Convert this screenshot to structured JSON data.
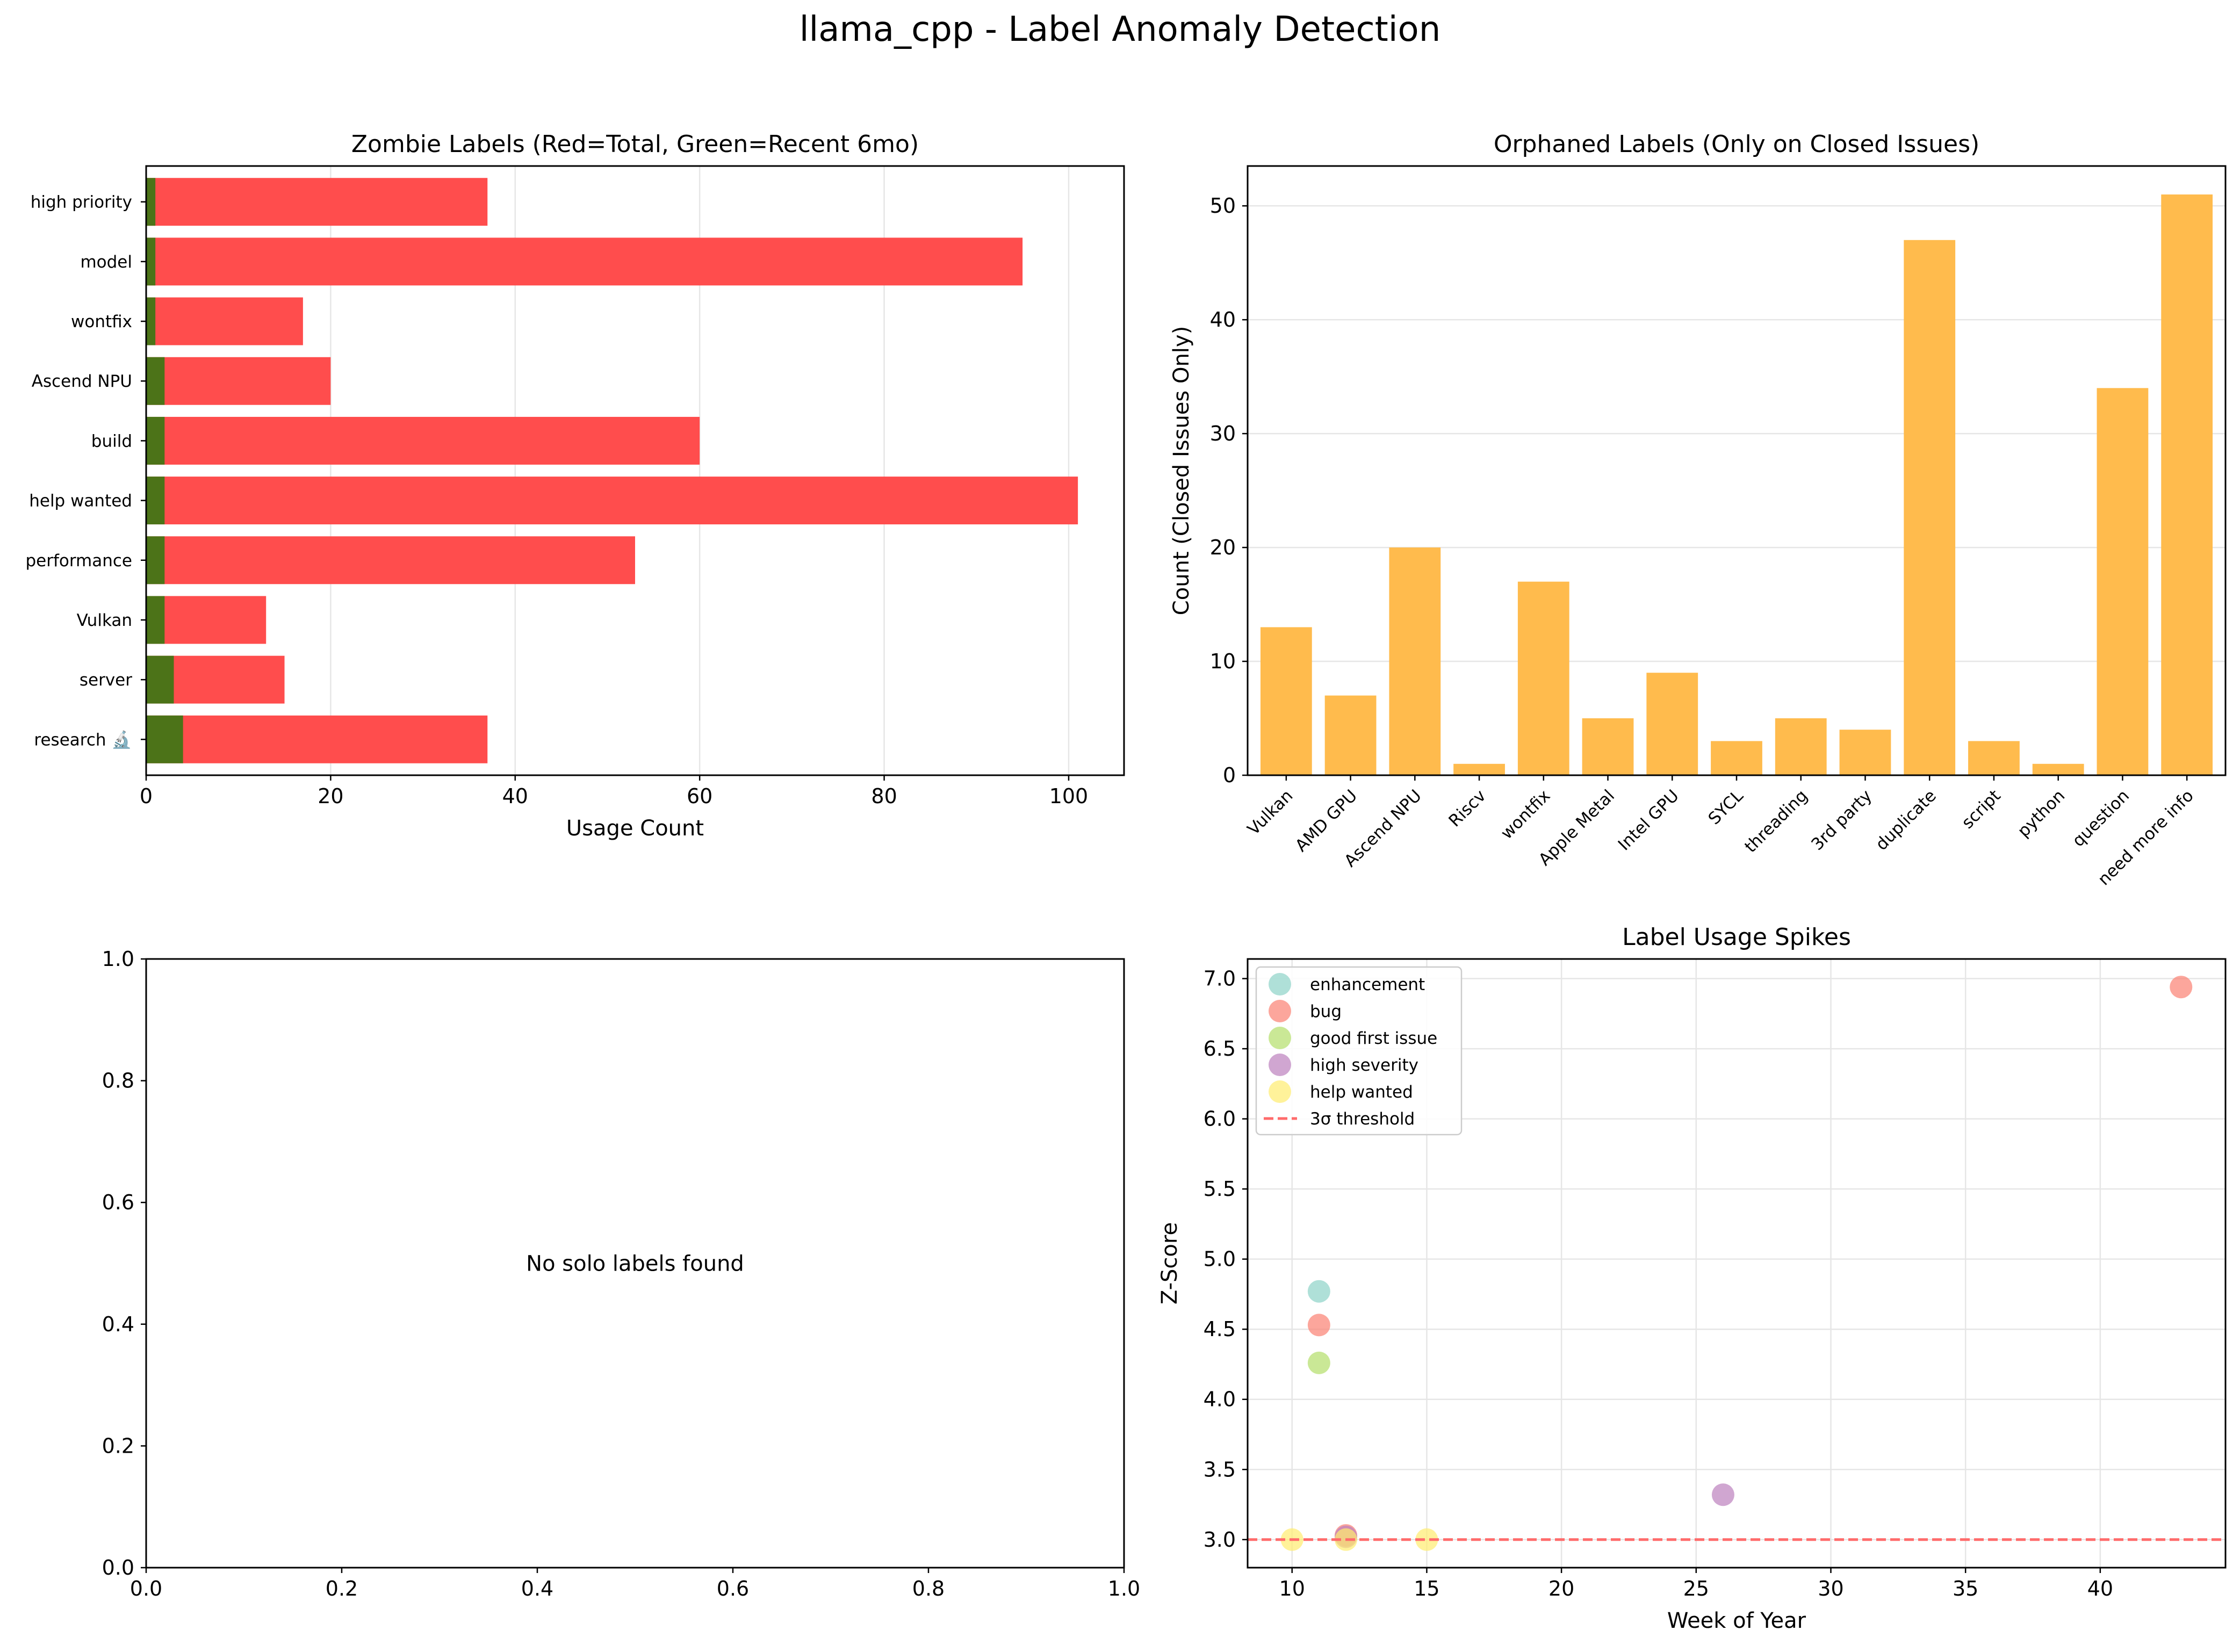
{
  "figure": {
    "title": "llama_cpp - Label Anomaly Detection"
  },
  "chart_data": [
    {
      "type": "bar",
      "orientation": "horizontal",
      "title": "Zombie Labels (Red=Total, Green=Recent 6mo)",
      "xlabel": "Usage Count",
      "ylabel": "",
      "categories": [
        "research 🔬",
        "server",
        "Vulkan",
        "performance",
        "help wanted",
        "build",
        "Ascend NPU",
        "wontfix",
        "model",
        "high priority"
      ],
      "series": [
        {
          "name": "Total",
          "color": "#ff4d4d",
          "values": [
            37,
            15,
            13,
            53,
            101,
            60,
            20,
            17,
            95,
            37
          ]
        },
        {
          "name": "Recent 6mo",
          "color": "#4c7318",
          "values": [
            4,
            3,
            2,
            2,
            2,
            2,
            2,
            1,
            1,
            1
          ]
        }
      ],
      "xlim": [
        0,
        106
      ],
      "xticks": [
        0,
        20,
        40,
        60,
        80,
        100
      ],
      "grid": "x"
    },
    {
      "type": "bar",
      "title": "Orphaned Labels (Only on Closed Issues)",
      "xlabel": "",
      "ylabel": "Count (Closed Issues Only)",
      "categories": [
        "Vulkan",
        "AMD GPU",
        "Ascend NPU",
        "Riscv",
        "wontfix",
        "Apple Metal",
        "Intel GPU",
        "SYCL",
        "threading",
        "3rd party",
        "duplicate",
        "script",
        "python",
        "question",
        "need more info"
      ],
      "values": [
        13,
        7,
        20,
        1,
        17,
        5,
        9,
        3,
        5,
        4,
        47,
        3,
        1,
        34,
        51
      ],
      "color": "#ffbb4d",
      "ylim": [
        0,
        53.5
      ],
      "yticks": [
        0,
        10,
        20,
        30,
        40,
        50
      ],
      "grid": "y"
    },
    {
      "type": "scatter",
      "title": "",
      "message": "No solo labels found",
      "xlim": [
        0,
        1
      ],
      "ylim": [
        0,
        1
      ],
      "xticks": [
        "0.0",
        "0.2",
        "0.4",
        "0.6",
        "0.8",
        "1.0"
      ],
      "yticks": [
        "0.0",
        "0.2",
        "0.4",
        "0.6",
        "0.8",
        "1.0"
      ],
      "series": []
    },
    {
      "type": "scatter",
      "title": "Label Usage Spikes",
      "xlabel": "Week of Year",
      "ylabel": "Z-Score",
      "xlim": [
        8.35,
        44.65
      ],
      "ylim": [
        2.8,
        7.14
      ],
      "xticks": [
        10,
        15,
        20,
        25,
        30,
        35,
        40
      ],
      "yticks": [
        "3.0",
        "3.5",
        "4.0",
        "4.5",
        "5.0",
        "5.5",
        "6.0",
        "6.5",
        "7.0"
      ],
      "grid": "both",
      "legend_position": "top-left",
      "series": [
        {
          "name": "enhancement",
          "color": "#8dd3c7",
          "points": [
            [
              11,
              4.77
            ]
          ]
        },
        {
          "name": "bug",
          "color": "#fb8072",
          "points": [
            [
              11,
              4.53
            ],
            [
              12,
              3.03
            ],
            [
              43,
              6.94
            ]
          ]
        },
        {
          "name": "good first issue",
          "color": "#b3de69",
          "points": [
            [
              11,
              4.26
            ]
          ]
        },
        {
          "name": "high severity",
          "color": "#bc80bd",
          "points": [
            [
              26,
              3.32
            ],
            [
              12,
              3.02
            ]
          ]
        },
        {
          "name": "help wanted",
          "color": "#ffed6f",
          "points": [
            [
              10,
              3.0
            ],
            [
              12,
              3.0
            ],
            [
              15,
              3.0
            ]
          ]
        }
      ],
      "threshold": {
        "name": "3σ threshold",
        "value": 3.0,
        "color": "#ff6b6b"
      }
    }
  ]
}
